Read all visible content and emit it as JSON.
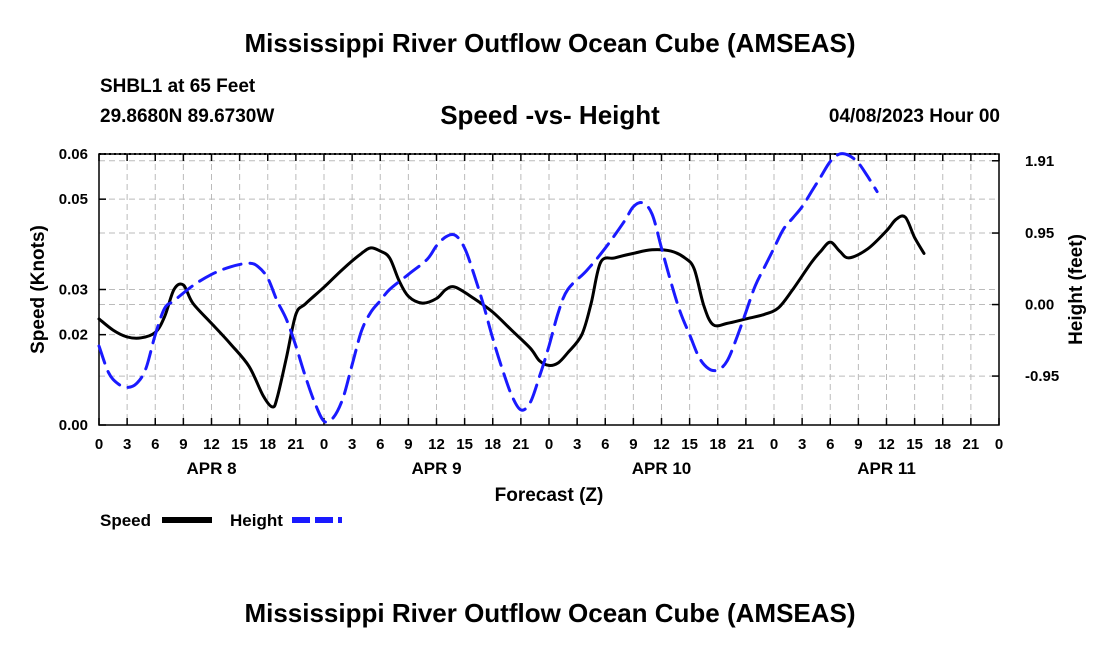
{
  "header": {
    "title": "Mississippi River Outflow Ocean Cube (AMSEAS)",
    "station": "SHBL1 at 65 Feet",
    "coords": "29.8680N  89.6730W",
    "subtitle": "Speed -vs- Height",
    "datetime": "04/08/2023 Hour 00"
  },
  "footer": {
    "title": "Mississippi River Outflow Ocean Cube (AMSEAS)"
  },
  "colors": {
    "speed": "#000000",
    "height": "#1a1aff",
    "grid": "#bbbbbb"
  },
  "chart_data": {
    "type": "line",
    "xlabel": "Forecast (Z)",
    "ylabel": "Speed (Knots)",
    "y2label": "Height (feet)",
    "xlim": [
      0,
      96
    ],
    "ylim": [
      0,
      0.06
    ],
    "y2lim": [
      -1.6,
      2.0
    ],
    "yticks": [
      0,
      0.02,
      0.03,
      0.05,
      0.06
    ],
    "ytick_labels": [
      "0.00",
      "0.02",
      "0.03",
      "0.05",
      "0.06"
    ],
    "y2ticks": [
      -0.95,
      0.0,
      0.95,
      1.91
    ],
    "y2tick_labels": [
      "-0.95",
      "0.00",
      "0.95",
      "1.91"
    ],
    "xticks": [
      0,
      3,
      6,
      9,
      12,
      15,
      18,
      21,
      24,
      27,
      30,
      33,
      36,
      39,
      42,
      45,
      48,
      51,
      54,
      57,
      60,
      63,
      66,
      69,
      72,
      75,
      78,
      81,
      84,
      87,
      90,
      93,
      96
    ],
    "xtick_labels": [
      "0",
      "3",
      "6",
      "9",
      "12",
      "15",
      "18",
      "21",
      "0",
      "3",
      "6",
      "9",
      "12",
      "15",
      "18",
      "21",
      "0",
      "3",
      "6",
      "9",
      "12",
      "15",
      "18",
      "21",
      "0",
      "3",
      "6",
      "9",
      "12",
      "15",
      "18",
      "21",
      "0"
    ],
    "day_labels": [
      {
        "x": 12,
        "label": "APR 8"
      },
      {
        "x": 36,
        "label": "APR 9"
      },
      {
        "x": 60,
        "label": "APR 10"
      },
      {
        "x": 84,
        "label": "APR 11"
      }
    ],
    "series": [
      {
        "name": "Speed",
        "axis": "left",
        "style": "solid",
        "points": [
          [
            0,
            0.0235
          ],
          [
            1.5,
            0.021
          ],
          [
            3,
            0.0195
          ],
          [
            4.5,
            0.0193
          ],
          [
            6,
            0.0205
          ],
          [
            7,
            0.024
          ],
          [
            8,
            0.03
          ],
          [
            9,
            0.031
          ],
          [
            10,
            0.027
          ],
          [
            12,
            0.0225
          ],
          [
            14,
            0.018
          ],
          [
            16,
            0.013
          ],
          [
            17.5,
            0.0065
          ],
          [
            18.5,
            0.004
          ],
          [
            19,
            0.006
          ],
          [
            20,
            0.015
          ],
          [
            21,
            0.0245
          ],
          [
            22,
            0.0268
          ],
          [
            24,
            0.0305
          ],
          [
            26,
            0.0345
          ],
          [
            28,
            0.038
          ],
          [
            29,
            0.0392
          ],
          [
            30,
            0.0385
          ],
          [
            31,
            0.037
          ],
          [
            32,
            0.032
          ],
          [
            33,
            0.0285
          ],
          [
            34.5,
            0.027
          ],
          [
            36,
            0.028
          ],
          [
            37,
            0.03
          ],
          [
            38,
            0.0305
          ],
          [
            40,
            0.028
          ],
          [
            42,
            0.025
          ],
          [
            44,
            0.021
          ],
          [
            46,
            0.017
          ],
          [
            47,
            0.0142
          ],
          [
            48,
            0.0132
          ],
          [
            49,
            0.0138
          ],
          [
            50,
            0.016
          ],
          [
            51.5,
            0.02
          ],
          [
            52.5,
            0.027
          ],
          [
            53.5,
            0.036
          ],
          [
            55,
            0.037
          ],
          [
            57,
            0.038
          ],
          [
            59,
            0.0388
          ],
          [
            61,
            0.0385
          ],
          [
            62.5,
            0.037
          ],
          [
            63.5,
            0.0345
          ],
          [
            64.5,
            0.0265
          ],
          [
            65.5,
            0.0222
          ],
          [
            67,
            0.0225
          ],
          [
            69,
            0.0235
          ],
          [
            71,
            0.0245
          ],
          [
            72.5,
            0.026
          ],
          [
            74,
            0.03
          ],
          [
            76,
            0.036
          ],
          [
            77,
            0.0385
          ],
          [
            78,
            0.0405
          ],
          [
            79,
            0.0385
          ],
          [
            80,
            0.037
          ],
          [
            82,
            0.039
          ],
          [
            84,
            0.043
          ],
          [
            85,
            0.0455
          ],
          [
            86,
            0.046
          ],
          [
            87,
            0.0415
          ],
          [
            88,
            0.038
          ]
        ]
      },
      {
        "name": "Height",
        "axis": "right",
        "style": "dashed",
        "points": [
          [
            0,
            -0.55
          ],
          [
            1,
            -0.9
          ],
          [
            2,
            -1.05
          ],
          [
            3,
            -1.1
          ],
          [
            4,
            -1.05
          ],
          [
            5,
            -0.85
          ],
          [
            6,
            -0.4
          ],
          [
            7,
            -0.05
          ],
          [
            8,
            0.05
          ],
          [
            10,
            0.25
          ],
          [
            12,
            0.4
          ],
          [
            14,
            0.5
          ],
          [
            16,
            0.55
          ],
          [
            17,
            0.5
          ],
          [
            18,
            0.35
          ],
          [
            19,
            0.05
          ],
          [
            20,
            -0.2
          ],
          [
            21,
            -0.55
          ],
          [
            22,
            -0.95
          ],
          [
            23,
            -1.3
          ],
          [
            24,
            -1.55
          ],
          [
            25,
            -1.5
          ],
          [
            26,
            -1.25
          ],
          [
            27,
            -0.8
          ],
          [
            28,
            -0.35
          ],
          [
            29,
            -0.1
          ],
          [
            30,
            0.05
          ],
          [
            31,
            0.2
          ],
          [
            33,
            0.4
          ],
          [
            35,
            0.6
          ],
          [
            36,
            0.78
          ],
          [
            37,
            0.9
          ],
          [
            38,
            0.92
          ],
          [
            39,
            0.75
          ],
          [
            40,
            0.4
          ],
          [
            41,
            0.0
          ],
          [
            42,
            -0.45
          ],
          [
            43,
            -0.85
          ],
          [
            44,
            -1.2
          ],
          [
            45,
            -1.4
          ],
          [
            46,
            -1.3
          ],
          [
            47,
            -0.95
          ],
          [
            48,
            -0.55
          ],
          [
            49,
            -0.1
          ],
          [
            50,
            0.2
          ],
          [
            52,
            0.45
          ],
          [
            54,
            0.75
          ],
          [
            56,
            1.1
          ],
          [
            57,
            1.3
          ],
          [
            58,
            1.35
          ],
          [
            59,
            1.2
          ],
          [
            60,
            0.75
          ],
          [
            61,
            0.3
          ],
          [
            62,
            -0.1
          ],
          [
            63,
            -0.4
          ],
          [
            64,
            -0.7
          ],
          [
            65,
            -0.85
          ],
          [
            66,
            -0.87
          ],
          [
            67,
            -0.75
          ],
          [
            68,
            -0.45
          ],
          [
            69,
            -0.1
          ],
          [
            70,
            0.25
          ],
          [
            71,
            0.5
          ],
          [
            72,
            0.75
          ],
          [
            73,
            1.0
          ],
          [
            74,
            1.15
          ],
          [
            75,
            1.3
          ],
          [
            76,
            1.5
          ],
          [
            77,
            1.7
          ],
          [
            78,
            1.9
          ],
          [
            79,
            2.0
          ],
          [
            80,
            1.98
          ],
          [
            81,
            1.88
          ],
          [
            82,
            1.7
          ],
          [
            83,
            1.5
          ]
        ]
      }
    ],
    "legend": [
      {
        "label": "Speed",
        "style": "solid"
      },
      {
        "label": "Height",
        "style": "dashed"
      }
    ],
    "grid": true,
    "legend_position": "bottom-left"
  }
}
